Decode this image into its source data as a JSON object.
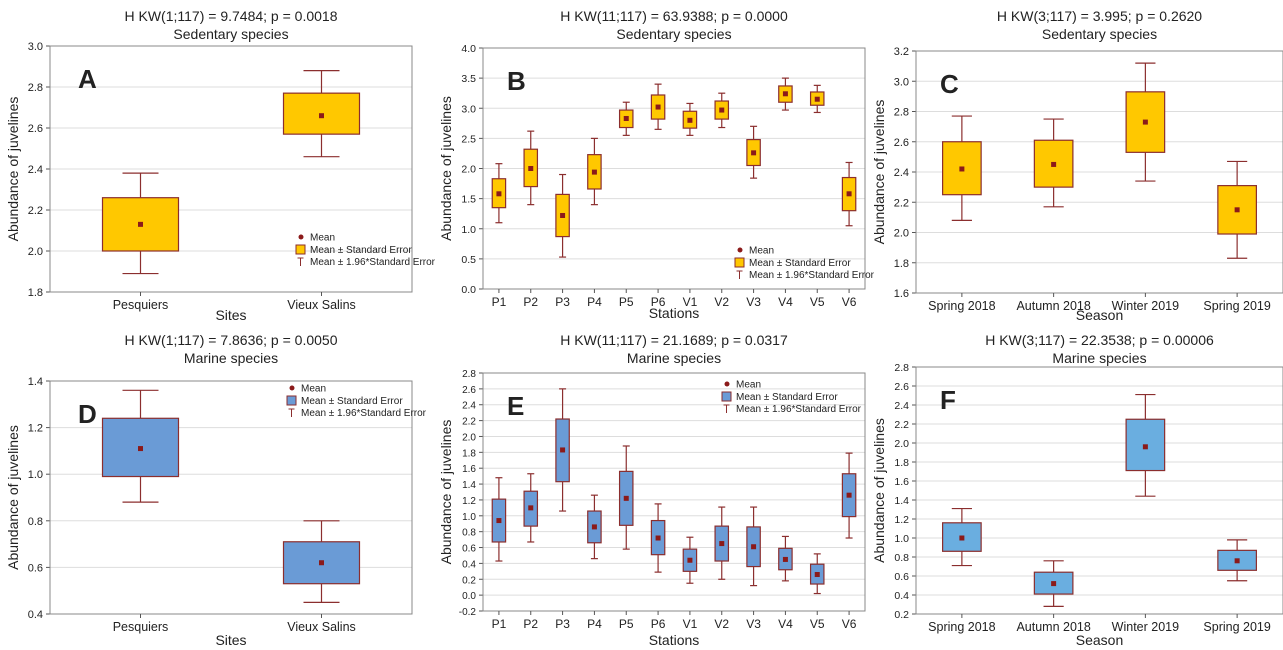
{
  "colors": {
    "sedentary_fill": "#FFC800",
    "marine_fill": "#6A9BD6",
    "marine_fill_light": "#6AAEE0",
    "box_stroke": "#8B2E2E",
    "mean_dot": "#8B1A1A"
  },
  "legend": {
    "mean": "Mean",
    "se": "Mean ± Standard Error",
    "ci": "Mean ± 1.96*Standard Error"
  },
  "chart_data": [
    {
      "type": "box",
      "panel_label": "A",
      "title": "H KW(1;117) = 9.7484; p = 0.0018",
      "subtitle": "Sedentary species",
      "xlabel": "Sites",
      "ylabel": "Abundance of juvelines",
      "ylim": [
        1.8,
        3.0
      ],
      "yticks": [
        "1.8",
        "2.0",
        "2.2",
        "2.4",
        "2.6",
        "2.8",
        "3.0"
      ],
      "categories": [
        "Pesquiers",
        "Vieux Salins"
      ],
      "series": [
        {
          "mean": 2.13,
          "se_low": 2.0,
          "se_high": 2.26,
          "ci_low": 1.89,
          "ci_high": 2.38
        },
        {
          "mean": 2.66,
          "se_low": 2.57,
          "se_high": 2.77,
          "ci_low": 2.46,
          "ci_high": 2.88
        }
      ],
      "legend_position": "bottom-right",
      "fill": "sedentary"
    },
    {
      "type": "box",
      "panel_label": "B",
      "title": "H KW(11;117) = 63.9388; p = 0.0000",
      "subtitle": "Sedentary species",
      "xlabel": "Stations",
      "ylabel": "Abundance of juvelines",
      "ylim": [
        0.0,
        4.0
      ],
      "yticks": [
        "0.0",
        "0.5",
        "1.0",
        "1.5",
        "2.0",
        "2.5",
        "3.0",
        "3.5",
        "4.0"
      ],
      "categories": [
        "P1",
        "P2",
        "P3",
        "P4",
        "P5",
        "P6",
        "V1",
        "V2",
        "V3",
        "V4",
        "V5",
        "V6"
      ],
      "series": [
        {
          "mean": 1.58,
          "se_low": 1.35,
          "se_high": 1.83,
          "ci_low": 1.1,
          "ci_high": 2.08
        },
        {
          "mean": 2.0,
          "se_low": 1.7,
          "se_high": 2.32,
          "ci_low": 1.4,
          "ci_high": 2.62
        },
        {
          "mean": 1.22,
          "se_low": 0.87,
          "se_high": 1.57,
          "ci_low": 0.53,
          "ci_high": 1.9
        },
        {
          "mean": 1.94,
          "se_low": 1.66,
          "se_high": 2.23,
          "ci_low": 1.4,
          "ci_high": 2.5
        },
        {
          "mean": 2.83,
          "se_low": 2.68,
          "se_high": 2.97,
          "ci_low": 2.55,
          "ci_high": 3.1
        },
        {
          "mean": 3.02,
          "se_low": 2.82,
          "se_high": 3.22,
          "ci_low": 2.65,
          "ci_high": 3.4
        },
        {
          "mean": 2.8,
          "se_low": 2.67,
          "se_high": 2.95,
          "ci_low": 2.55,
          "ci_high": 3.08
        },
        {
          "mean": 2.97,
          "se_low": 2.82,
          "se_high": 3.12,
          "ci_low": 2.68,
          "ci_high": 3.25
        },
        {
          "mean": 2.26,
          "se_low": 2.05,
          "se_high": 2.48,
          "ci_low": 1.84,
          "ci_high": 2.7
        },
        {
          "mean": 3.24,
          "se_low": 3.1,
          "se_high": 3.37,
          "ci_low": 2.97,
          "ci_high": 3.5
        },
        {
          "mean": 3.15,
          "se_low": 3.05,
          "se_high": 3.27,
          "ci_low": 2.93,
          "ci_high": 3.38
        },
        {
          "mean": 1.58,
          "se_low": 1.3,
          "se_high": 1.85,
          "ci_low": 1.05,
          "ci_high": 2.1
        }
      ],
      "legend_position": "bottom-right",
      "fill": "sedentary"
    },
    {
      "type": "box",
      "panel_label": "C",
      "title": "H KW(3;117) = 3.995; p = 0.2620",
      "subtitle": "Sedentary species",
      "xlabel": "Season",
      "ylabel": "Abundance of juvelines",
      "ylim": [
        1.6,
        3.2
      ],
      "yticks": [
        "1.6",
        "1.8",
        "2.0",
        "2.2",
        "2.4",
        "2.6",
        "2.8",
        "3.0",
        "3.2"
      ],
      "categories": [
        "Spring 2018",
        "Autumn 2018",
        "Winter 2019",
        "Spring 2019"
      ],
      "series": [
        {
          "mean": 2.42,
          "se_low": 2.25,
          "se_high": 2.6,
          "ci_low": 2.08,
          "ci_high": 2.77
        },
        {
          "mean": 2.45,
          "se_low": 2.3,
          "se_high": 2.61,
          "ci_low": 2.17,
          "ci_high": 2.75
        },
        {
          "mean": 2.73,
          "se_low": 2.53,
          "se_high": 2.93,
          "ci_low": 2.34,
          "ci_high": 3.12
        },
        {
          "mean": 2.15,
          "se_low": 1.99,
          "se_high": 2.31,
          "ci_low": 1.83,
          "ci_high": 2.47
        }
      ],
      "legend_position": "none",
      "fill": "sedentary"
    },
    {
      "type": "box",
      "panel_label": "D",
      "title": "H KW(1;117) = 7.8636; p = 0.0050",
      "subtitle": "Marine species",
      "xlabel": "Sites",
      "ylabel": "Abundance of juvelines",
      "ylim": [
        0.4,
        1.4
      ],
      "yticks": [
        "0.4",
        "0.6",
        "0.8",
        "1.0",
        "1.2",
        "1.4"
      ],
      "categories": [
        "Pesquiers",
        "Vieux Salins"
      ],
      "series": [
        {
          "mean": 1.11,
          "se_low": 0.99,
          "se_high": 1.24,
          "ci_low": 0.88,
          "ci_high": 1.36
        },
        {
          "mean": 0.62,
          "se_low": 0.53,
          "se_high": 0.71,
          "ci_low": 0.45,
          "ci_high": 0.8
        }
      ],
      "legend_position": "top-right",
      "fill": "marine"
    },
    {
      "type": "box",
      "panel_label": "E",
      "title": "H KW(11;117) = 21.1689; p = 0.0317",
      "subtitle": "Marine species",
      "xlabel": "Stations",
      "ylabel": "Abundance of juvelines",
      "ylim": [
        -0.2,
        2.8
      ],
      "yticks": [
        "-0.2",
        "0.0",
        "0.2",
        "0.4",
        "0.6",
        "0.8",
        "1.0",
        "1.2",
        "1.4",
        "1.6",
        "1.8",
        "2.0",
        "2.2",
        "2.4",
        "2.6",
        "2.8"
      ],
      "categories": [
        "P1",
        "P2",
        "P3",
        "P4",
        "P5",
        "P6",
        "V1",
        "V2",
        "V3",
        "V4",
        "V5",
        "V6"
      ],
      "series": [
        {
          "mean": 0.94,
          "se_low": 0.67,
          "se_high": 1.21,
          "ci_low": 0.43,
          "ci_high": 1.48
        },
        {
          "mean": 1.1,
          "se_low": 0.87,
          "se_high": 1.31,
          "ci_low": 0.67,
          "ci_high": 1.53
        },
        {
          "mean": 1.83,
          "se_low": 1.43,
          "se_high": 2.22,
          "ci_low": 1.06,
          "ci_high": 2.6
        },
        {
          "mean": 0.86,
          "se_low": 0.66,
          "se_high": 1.06,
          "ci_low": 0.46,
          "ci_high": 1.26
        },
        {
          "mean": 1.22,
          "se_low": 0.88,
          "se_high": 1.56,
          "ci_low": 0.58,
          "ci_high": 1.88
        },
        {
          "mean": 0.72,
          "se_low": 0.51,
          "se_high": 0.94,
          "ci_low": 0.29,
          "ci_high": 1.15
        },
        {
          "mean": 0.44,
          "se_low": 0.3,
          "se_high": 0.58,
          "ci_low": 0.15,
          "ci_high": 0.73
        },
        {
          "mean": 0.65,
          "se_low": 0.43,
          "se_high": 0.87,
          "ci_low": 0.2,
          "ci_high": 1.11
        },
        {
          "mean": 0.61,
          "se_low": 0.36,
          "se_high": 0.86,
          "ci_low": 0.12,
          "ci_high": 1.11
        },
        {
          "mean": 0.45,
          "se_low": 0.32,
          "se_high": 0.59,
          "ci_low": 0.18,
          "ci_high": 0.74
        },
        {
          "mean": 0.26,
          "se_low": 0.14,
          "se_high": 0.39,
          "ci_low": 0.02,
          "ci_high": 0.52
        },
        {
          "mean": 1.26,
          "se_low": 0.99,
          "se_high": 1.53,
          "ci_low": 0.72,
          "ci_high": 1.79
        }
      ],
      "legend_position": "top-right",
      "fill": "marine"
    },
    {
      "type": "box",
      "panel_label": "F",
      "title": "H KW(3;117) = 22.3538; p = 0.00006",
      "subtitle": "Marine species",
      "xlabel": "Season",
      "ylabel": "Abundance of juvelines",
      "ylim": [
        0.2,
        2.8
      ],
      "yticks": [
        "0.2",
        "0.4",
        "0.6",
        "0.8",
        "1.0",
        "1.2",
        "1.4",
        "1.6",
        "1.8",
        "2.0",
        "2.2",
        "2.4",
        "2.6",
        "2.8"
      ],
      "categories": [
        "Spring 2018",
        "Autumn 2018",
        "Winter 2019",
        "Spring 2019"
      ],
      "series": [
        {
          "mean": 1.0,
          "se_low": 0.86,
          "se_high": 1.16,
          "ci_low": 0.71,
          "ci_high": 1.31
        },
        {
          "mean": 0.52,
          "se_low": 0.41,
          "se_high": 0.64,
          "ci_low": 0.28,
          "ci_high": 0.76
        },
        {
          "mean": 1.96,
          "se_low": 1.71,
          "se_high": 2.25,
          "ci_low": 1.44,
          "ci_high": 2.51
        },
        {
          "mean": 0.76,
          "se_low": 0.66,
          "se_high": 0.87,
          "ci_low": 0.55,
          "ci_high": 0.98
        }
      ],
      "legend_position": "none",
      "fill": "marine_light"
    }
  ]
}
